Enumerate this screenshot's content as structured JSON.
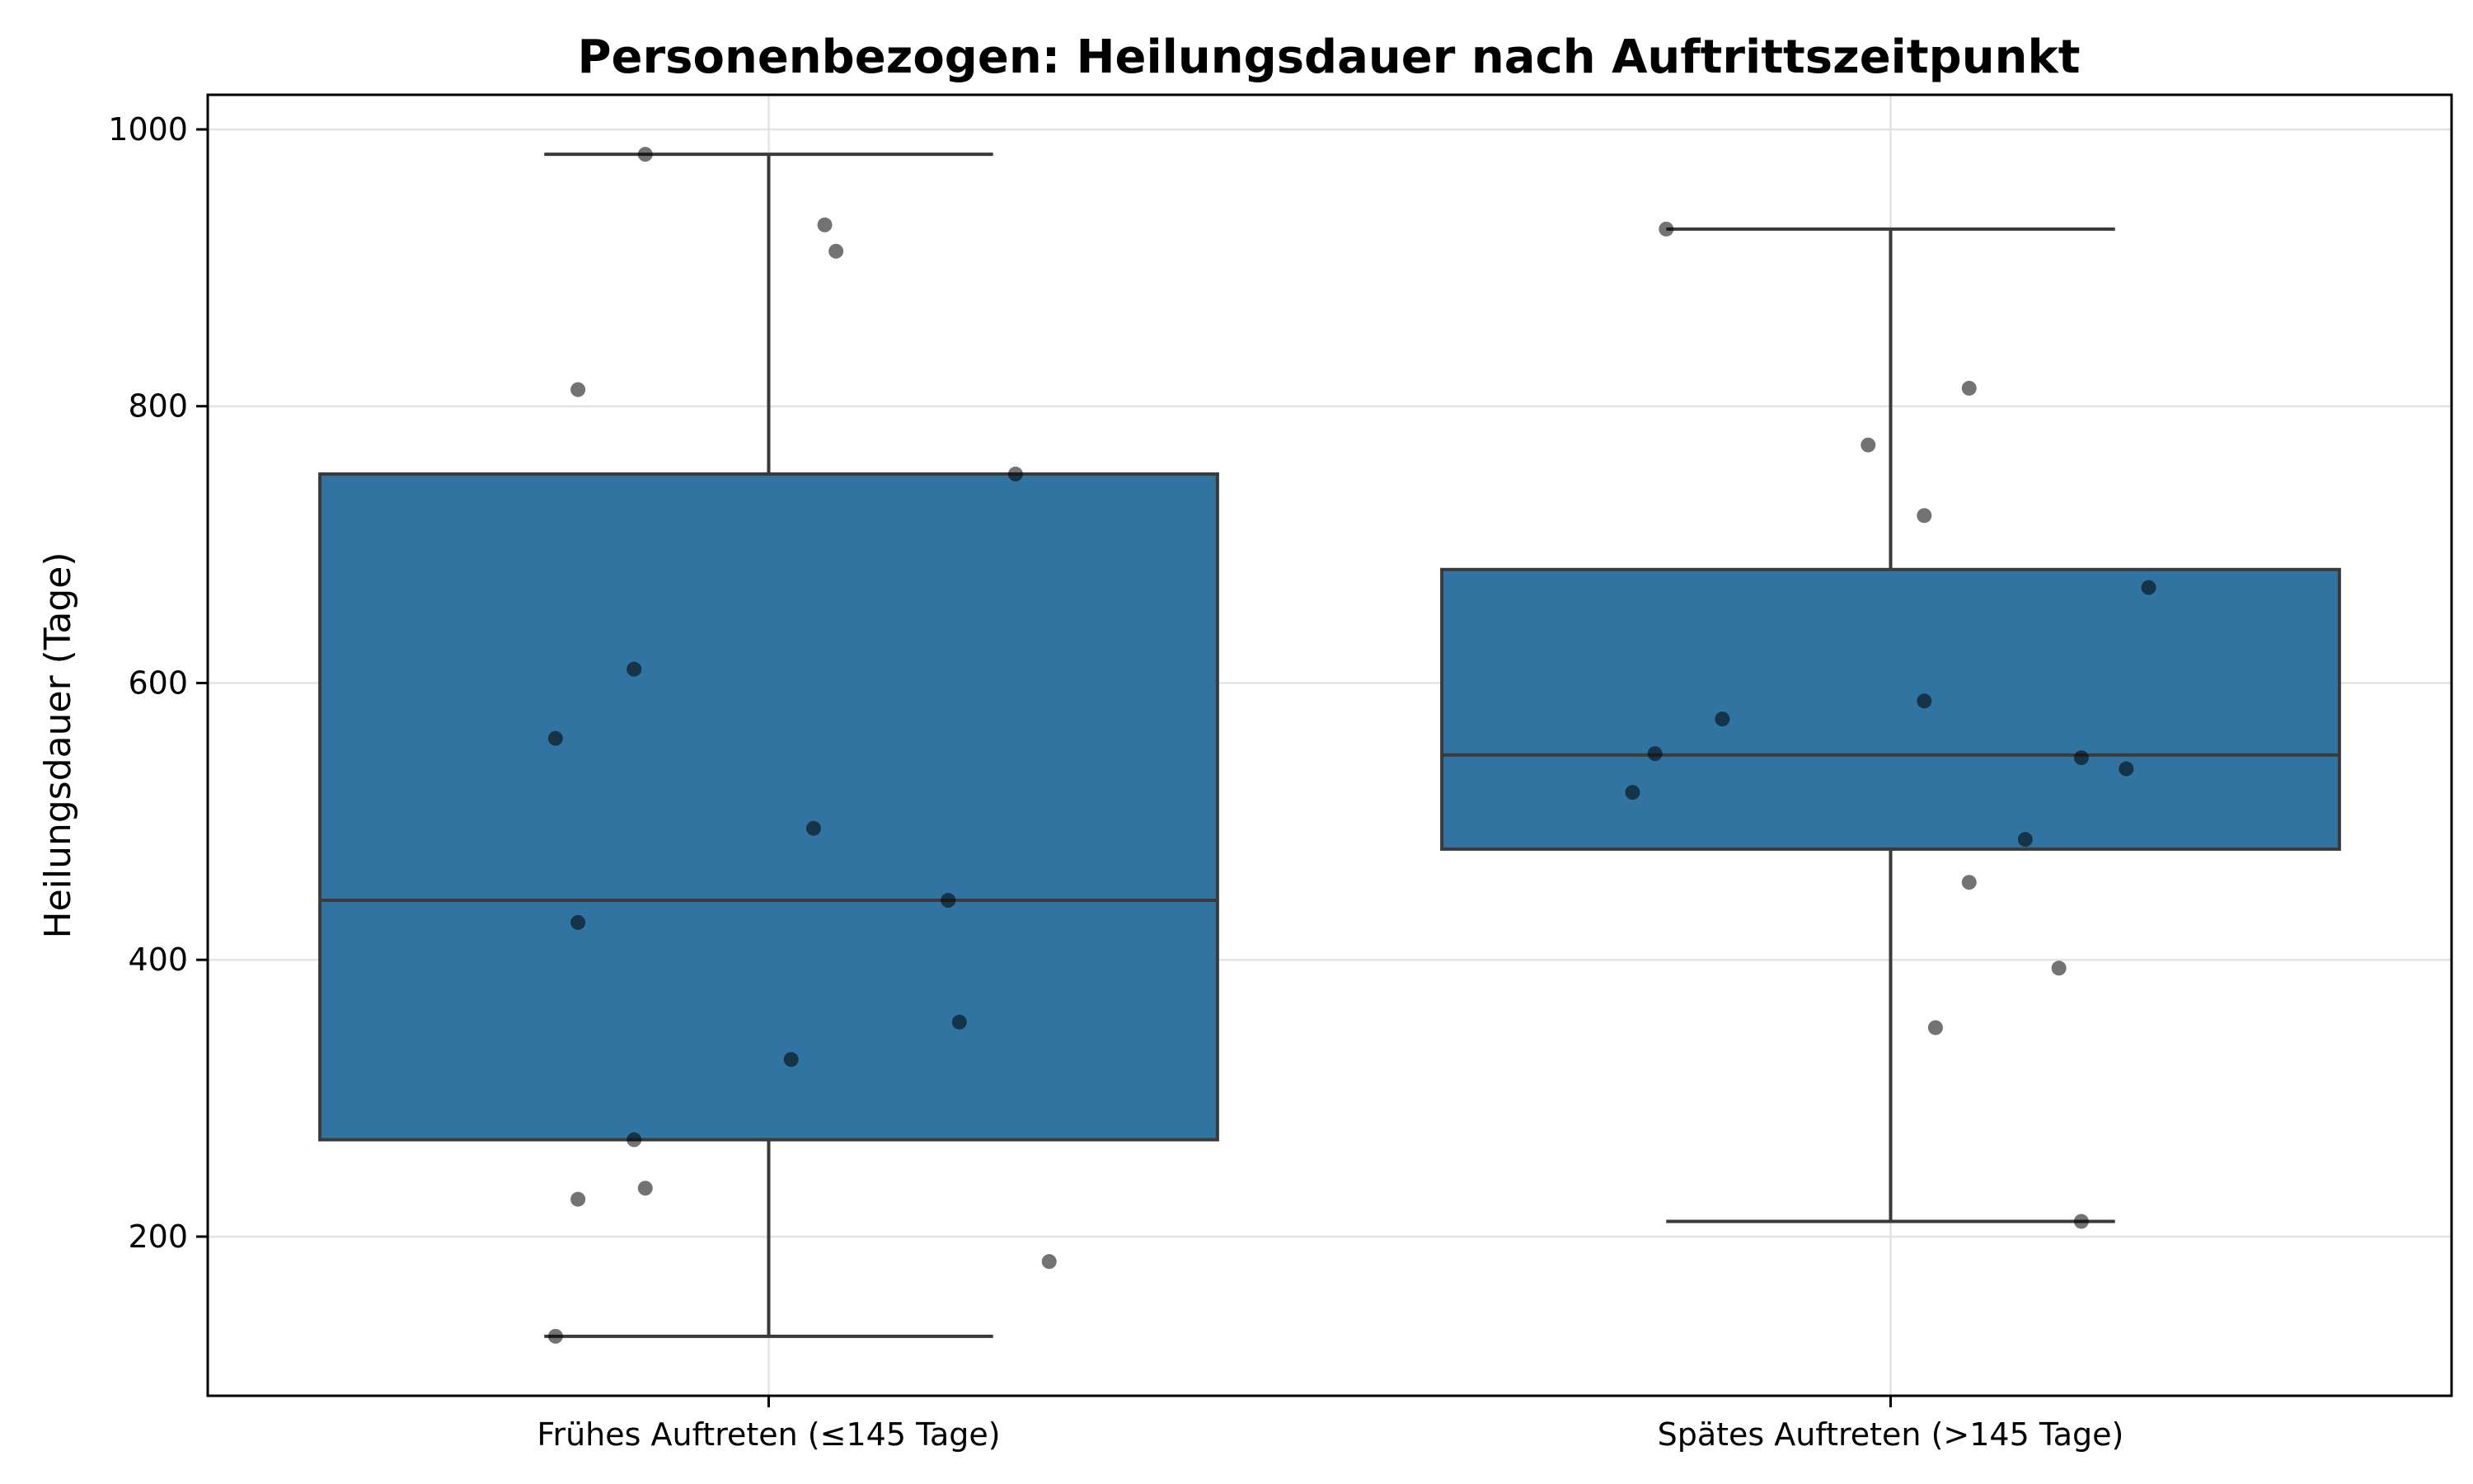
{
  "chart_data": {
    "type": "box",
    "title": "Personenbezogen: Heilungsdauer nach Auftrittszeitpunkt",
    "xlabel": "",
    "ylabel": "Heilungsdauer (Tage)",
    "ylim": [
      85,
      1025
    ],
    "yticks": [
      200,
      400,
      600,
      800,
      1000
    ],
    "grid": true,
    "legend": "none",
    "colors": {
      "box": "#3274a1",
      "line": "#3a3a3a",
      "point": "#000000"
    },
    "categories": [
      "Frühes Auftreten (≤145 Tage)",
      "Spätes Auftreten (>145 Tage)"
    ],
    "boxes": [
      {
        "category": "Frühes Auftreten (≤145 Tage)",
        "whisker_low": 128,
        "q1": 270,
        "median": 443,
        "q3": 751,
        "whisker_high": 982,
        "points": [
          {
            "x_jitter": -0.11,
            "y": 982
          },
          {
            "x_jitter": 0.05,
            "y": 931
          },
          {
            "x_jitter": 0.06,
            "y": 912
          },
          {
            "x_jitter": -0.17,
            "y": 812
          },
          {
            "x_jitter": 0.22,
            "y": 751
          },
          {
            "x_jitter": -0.12,
            "y": 610
          },
          {
            "x_jitter": -0.19,
            "y": 560
          },
          {
            "x_jitter": 0.04,
            "y": 495
          },
          {
            "x_jitter": 0.16,
            "y": 443
          },
          {
            "x_jitter": -0.17,
            "y": 427
          },
          {
            "x_jitter": 0.17,
            "y": 355
          },
          {
            "x_jitter": 0.02,
            "y": 328
          },
          {
            "x_jitter": -0.12,
            "y": 270
          },
          {
            "x_jitter": -0.11,
            "y": 235
          },
          {
            "x_jitter": -0.17,
            "y": 227
          },
          {
            "x_jitter": 0.25,
            "y": 182
          },
          {
            "x_jitter": -0.19,
            "y": 128
          }
        ]
      },
      {
        "category": "Spätes Auftreten (>145 Tage)",
        "whisker_low": 211,
        "q1": 480,
        "median": 548,
        "q3": 682,
        "whisker_high": 928,
        "points": [
          {
            "x_jitter": -0.2,
            "y": 928
          },
          {
            "x_jitter": 0.07,
            "y": 813
          },
          {
            "x_jitter": -0.02,
            "y": 772
          },
          {
            "x_jitter": 0.03,
            "y": 721
          },
          {
            "x_jitter": 0.23,
            "y": 669
          },
          {
            "x_jitter": 0.03,
            "y": 587
          },
          {
            "x_jitter": -0.15,
            "y": 574
          },
          {
            "x_jitter": -0.21,
            "y": 549
          },
          {
            "x_jitter": 0.17,
            "y": 546
          },
          {
            "x_jitter": 0.21,
            "y": 538
          },
          {
            "x_jitter": -0.23,
            "y": 521
          },
          {
            "x_jitter": 0.12,
            "y": 487
          },
          {
            "x_jitter": 0.07,
            "y": 456
          },
          {
            "x_jitter": 0.15,
            "y": 394
          },
          {
            "x_jitter": 0.04,
            "y": 351
          },
          {
            "x_jitter": 0.17,
            "y": 211
          }
        ]
      }
    ]
  }
}
